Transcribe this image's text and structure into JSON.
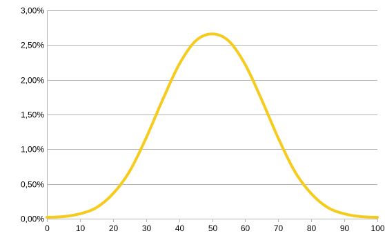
{
  "chart_data": {
    "type": "line",
    "title": "",
    "xlabel": "",
    "ylabel": "",
    "xlim": [
      0,
      100
    ],
    "ylim": [
      0,
      0.03
    ],
    "grid": true,
    "x_ticks": [
      0,
      10,
      20,
      30,
      40,
      50,
      60,
      70,
      80,
      90,
      100
    ],
    "x_tick_labels": [
      "0",
      "10",
      "20",
      "30",
      "40",
      "50",
      "60",
      "70",
      "80",
      "90",
      "100"
    ],
    "y_ticks": [
      0,
      0.005,
      0.01,
      0.015,
      0.02,
      0.025,
      0.03
    ],
    "y_tick_labels": [
      "0,00%",
      "0,50%",
      "1,00%",
      "1,50%",
      "2,00%",
      "2,50%",
      "3,00%"
    ],
    "series": [
      {
        "color": "#f5cc1e",
        "x": [
          0,
          5,
          10,
          15,
          20,
          25,
          30,
          35,
          40,
          45,
          50,
          55,
          60,
          65,
          70,
          75,
          80,
          85,
          90,
          95,
          100
        ],
        "values": [
          0.0002,
          0.0003,
          0.0007,
          0.0016,
          0.0036,
          0.0068,
          0.0116,
          0.0171,
          0.0222,
          0.0256,
          0.0266,
          0.0256,
          0.0222,
          0.0171,
          0.0116,
          0.0068,
          0.0036,
          0.0016,
          0.0007,
          0.0003,
          0.0002
        ]
      }
    ]
  }
}
